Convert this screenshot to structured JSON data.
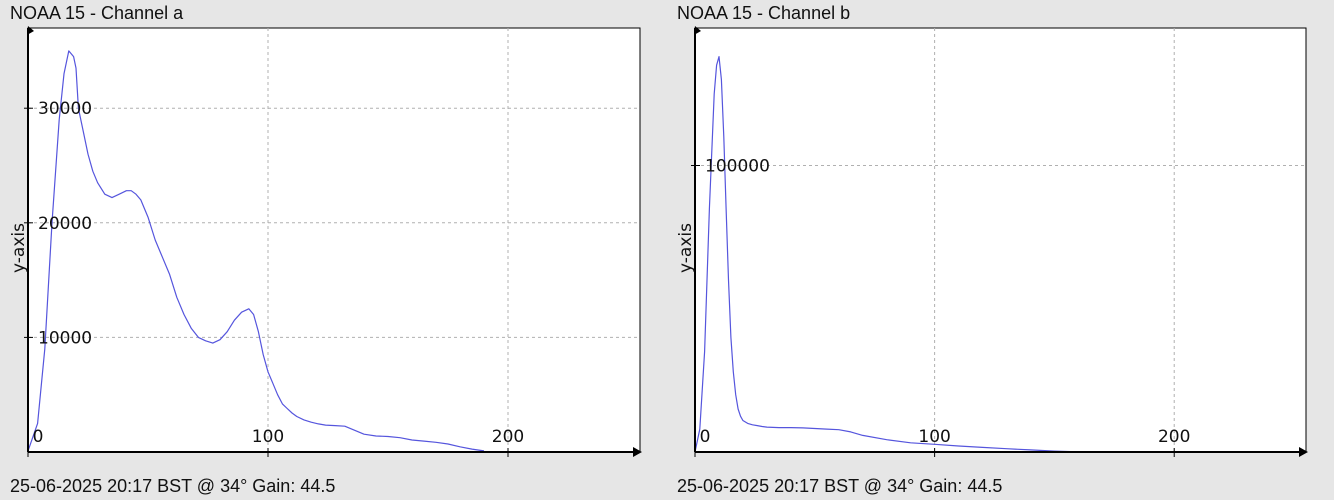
{
  "charts": [
    {
      "title": "NOAA 15 - Channel a",
      "footer": "25-06-2025 20:17 BST @ 34° Gain: 44.5"
    },
    {
      "title": "NOAA 15 - Channel b",
      "footer": "25-06-2025 20:17 BST @ 34° Gain: 44.5"
    }
  ],
  "colors": {
    "background": "#e6e6e6",
    "plot_background": "#ffffff",
    "line": "#5555dd",
    "grid": "#b0b0b0",
    "axis": "#000000"
  },
  "chart_data": [
    {
      "type": "line",
      "title": "NOAA 15 - Channel a",
      "xlabel": "",
      "ylabel": "y-axis",
      "xlim": [
        0,
        255
      ],
      "ylim": [
        0,
        37000
      ],
      "x_ticks": [
        0,
        100,
        200
      ],
      "y_ticks": [
        10000,
        20000,
        30000
      ],
      "grid": true,
      "series": [
        {
          "x": [
            0,
            4,
            7,
            10,
            13,
            15,
            17,
            19,
            20,
            21,
            23,
            25,
            27,
            29,
            32,
            35,
            38,
            41,
            43,
            45,
            47,
            50,
            53,
            56,
            59,
            62,
            65,
            68,
            71,
            74,
            77,
            80,
            83,
            86,
            89,
            92,
            94,
            96,
            98,
            100,
            102,
            104,
            106,
            108,
            110,
            112,
            115,
            118,
            121,
            124,
            128,
            132,
            136,
            140,
            145,
            150,
            155,
            160,
            165,
            170,
            175,
            180,
            185,
            190
          ],
          "values": [
            100,
            2500,
            9000,
            20000,
            29000,
            33000,
            35000,
            34500,
            33500,
            30000,
            28000,
            26000,
            24500,
            23500,
            22500,
            22200,
            22500,
            22800,
            22800,
            22500,
            22000,
            20500,
            18500,
            17000,
            15500,
            13500,
            12000,
            10800,
            10000,
            9700,
            9500,
            9800,
            10500,
            11500,
            12200,
            12500,
            12000,
            10500,
            8500,
            7000,
            6000,
            5000,
            4200,
            3800,
            3400,
            3100,
            2800,
            2600,
            2450,
            2350,
            2300,
            2250,
            1900,
            1550,
            1400,
            1350,
            1250,
            1050,
            950,
            850,
            700,
            450,
            250,
            100
          ]
        }
      ]
    },
    {
      "type": "line",
      "title": "NOAA 15 - Channel b",
      "xlabel": "",
      "ylabel": "y-axis",
      "xlim": [
        0,
        255
      ],
      "ylim": [
        0,
        148000
      ],
      "x_ticks": [
        0,
        100,
        200
      ],
      "y_ticks": [
        100000
      ],
      "grid": true,
      "series": [
        {
          "x": [
            0,
            2,
            4,
            6,
            8,
            9,
            10,
            11,
            12,
            13,
            14,
            15,
            16,
            17,
            18,
            19,
            20,
            22,
            24,
            26,
            28,
            30,
            35,
            40,
            45,
            50,
            55,
            60,
            65,
            70,
            80,
            90,
            100,
            110,
            120,
            130,
            140,
            150,
            160
          ],
          "values": [
            0,
            8000,
            35000,
            85000,
            125000,
            135000,
            138000,
            130000,
            110000,
            85000,
            60000,
            40000,
            28000,
            20000,
            15000,
            12500,
            11000,
            10000,
            9500,
            9200,
            8900,
            8700,
            8500,
            8500,
            8400,
            8200,
            8000,
            7800,
            7000,
            5800,
            4300,
            3200,
            2700,
            2100,
            1600,
            1150,
            750,
            300,
            50
          ]
        }
      ]
    }
  ]
}
